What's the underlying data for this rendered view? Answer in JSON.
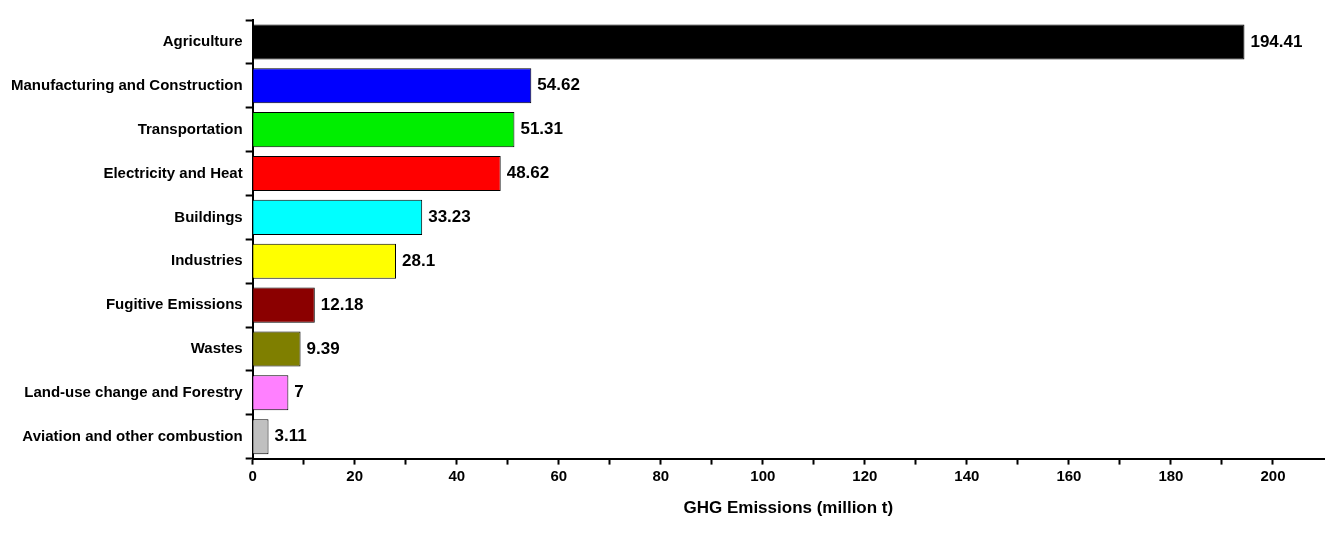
{
  "chart_data": {
    "type": "bar",
    "orientation": "horizontal",
    "xlabel": "GHG Emissions (million t)",
    "categories": [
      "Agriculture",
      "Manufacturing and Construction",
      "Transportation",
      "Electricity and Heat",
      "Buildings",
      "Industries",
      "Fugitive Emissions",
      "Wastes",
      "Land-use change and Forestry",
      "Aviation and other combustion"
    ],
    "values": [
      194.41,
      54.62,
      51.31,
      48.62,
      33.23,
      28.1,
      12.18,
      9.39,
      7,
      3.11
    ],
    "colors": [
      "#000000",
      "#0000ff",
      "#00ee00",
      "#ff0000",
      "#00ffff",
      "#ffff00",
      "#8b0000",
      "#7f7f00",
      "#ff80ff",
      "#c0c0c0"
    ],
    "xlim": [
      0,
      210
    ],
    "xticks": [
      0,
      {
        "value": 10,
        "label": null
      },
      20,
      {
        "value": 30,
        "label": null
      },
      40,
      {
        "value": 50,
        "label": null
      },
      60,
      {
        "value": 70,
        "label": null
      },
      80,
      {
        "value": 90,
        "label": null
      },
      100,
      {
        "value": 110,
        "label": null
      },
      120,
      {
        "value": 130,
        "label": null
      },
      140,
      {
        "value": 150,
        "label": null
      },
      160,
      {
        "value": 170,
        "label": null
      },
      180,
      {
        "value": 190,
        "label": null
      },
      200
    ],
    "data_labels": true,
    "grid": false,
    "legend": false
  }
}
